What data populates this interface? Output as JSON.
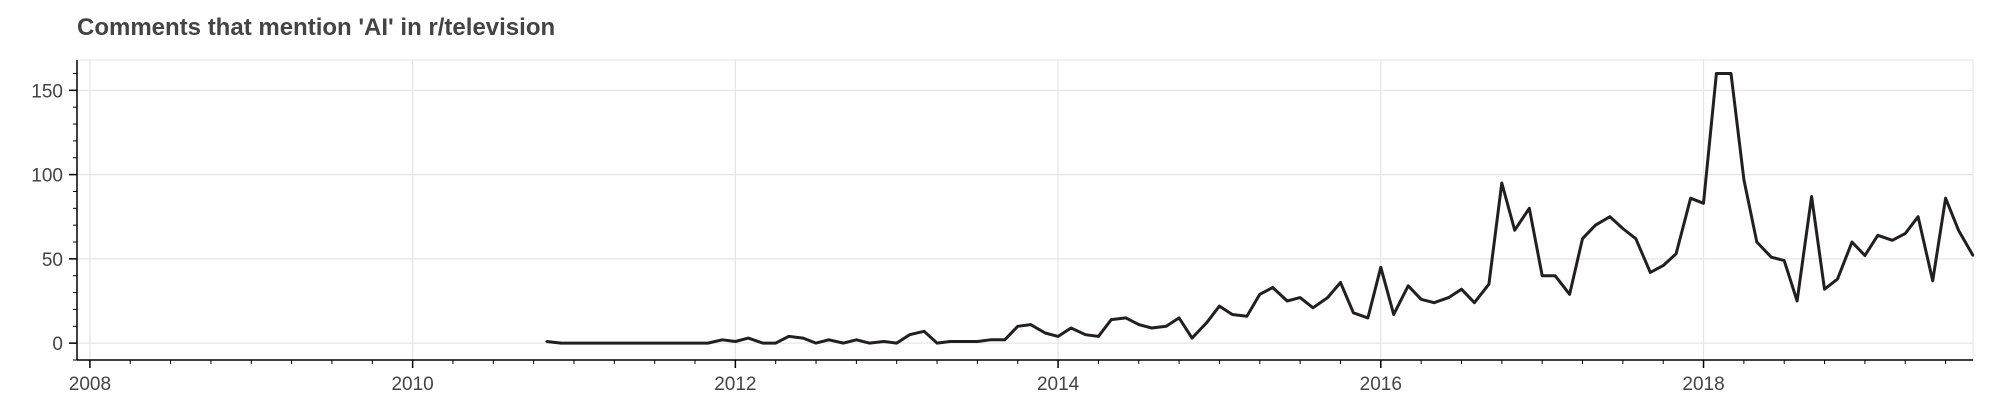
{
  "title": "Comments that mention 'AI' in r/television",
  "chart_data": {
    "type": "line",
    "title": "Comments that mention 'AI' in r/television",
    "xlabel": "",
    "ylabel": "",
    "xlim": [
      2007.92,
      2019.67
    ],
    "ylim": [
      -10,
      168
    ],
    "x_ticks": [
      2008,
      2010,
      2012,
      2014,
      2016,
      2018
    ],
    "y_ticks": [
      0,
      50,
      100,
      150
    ],
    "grid": true,
    "legend": "none",
    "line_color": "#231f20",
    "series": [
      {
        "x": [
          2010.83,
          2010.92,
          2011.0,
          2011.08,
          2011.17,
          2011.25,
          2011.33,
          2011.42,
          2011.5,
          2011.58,
          2011.67,
          2011.75,
          2011.83,
          2011.92,
          2012.0,
          2012.08,
          2012.17,
          2012.25,
          2012.33,
          2012.42,
          2012.5,
          2012.58,
          2012.67,
          2012.75,
          2012.83,
          2012.92,
          2013.0,
          2013.08,
          2013.17,
          2013.25,
          2013.33,
          2013.42,
          2013.5,
          2013.58,
          2013.67,
          2013.75,
          2013.83,
          2013.92,
          2014.0,
          2014.08,
          2014.17,
          2014.25,
          2014.33,
          2014.42,
          2014.5,
          2014.58,
          2014.67,
          2014.75,
          2014.83,
          2014.92,
          2015.0,
          2015.08,
          2015.17,
          2015.25,
          2015.33,
          2015.42,
          2015.5,
          2015.58,
          2015.67,
          2015.75,
          2015.83,
          2015.92,
          2016.0,
          2016.08,
          2016.17,
          2016.25,
          2016.33,
          2016.42,
          2016.5,
          2016.58,
          2016.67,
          2016.75,
          2016.83,
          2016.92,
          2017.0,
          2017.08,
          2017.17,
          2017.25,
          2017.33,
          2017.42,
          2017.5,
          2017.58,
          2017.67,
          2017.75,
          2017.83,
          2017.92,
          2018.0,
          2018.08,
          2018.17,
          2018.25,
          2018.33,
          2018.42,
          2018.5,
          2018.58,
          2018.67,
          2018.75,
          2018.83,
          2018.92,
          2019.0,
          2019.08,
          2019.17,
          2019.25,
          2019.33,
          2019.42,
          2019.5,
          2019.58,
          2019.67
        ],
        "y": [
          1,
          0,
          0,
          0,
          0,
          0,
          0,
          0,
          0,
          0,
          0,
          0,
          0,
          2,
          1,
          3,
          0,
          0,
          4,
          3,
          0,
          2,
          0,
          2,
          0,
          1,
          0,
          5,
          7,
          0,
          1,
          1,
          1,
          2,
          2,
          10,
          11,
          6,
          4,
          9,
          5,
          4,
          14,
          15,
          11,
          9,
          10,
          15,
          3,
          12,
          22,
          17,
          16,
          29,
          33,
          25,
          27,
          21,
          27,
          36,
          18,
          15,
          45,
          17,
          34,
          26,
          24,
          27,
          32,
          24,
          35,
          95,
          67,
          80,
          40,
          40,
          29,
          62,
          70,
          75,
          68,
          62,
          42,
          46,
          53,
          86,
          83,
          160,
          160,
          97,
          60,
          51,
          49,
          25,
          87,
          32,
          38,
          60,
          52,
          64,
          61,
          65,
          75,
          37,
          86,
          67,
          52
        ]
      }
    ]
  }
}
